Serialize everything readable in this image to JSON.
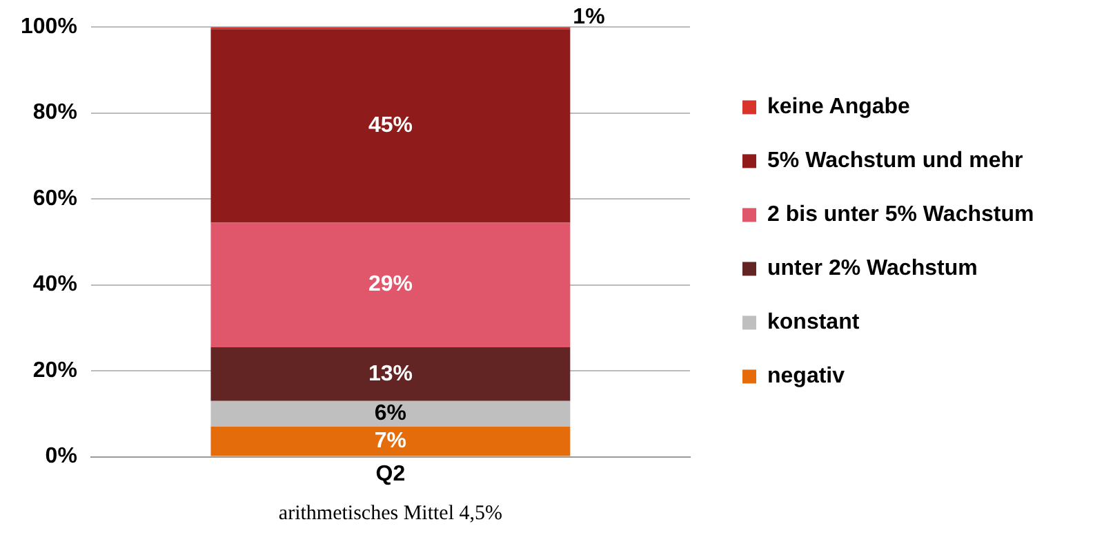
{
  "chart_data": {
    "type": "bar",
    "stacked": true,
    "categories": [
      "Q2"
    ],
    "series": [
      {
        "name": "negativ",
        "color": "#e46c0a",
        "values": [
          7
        ],
        "value_labels": [
          "7%"
        ]
      },
      {
        "name": "konstant",
        "color": "#bfbfbf",
        "values": [
          6
        ],
        "value_labels": [
          "6%"
        ]
      },
      {
        "name": "unter 2% Wachstum",
        "color": "#632523",
        "values": [
          12.5
        ],
        "value_labels": [
          "13%"
        ]
      },
      {
        "name": "2 bis unter 5% Wachstum",
        "color": "#e0566b",
        "values": [
          29
        ],
        "value_labels": [
          "29%"
        ]
      },
      {
        "name": "5% Wachstum und mehr",
        "color": "#8f1b1b",
        "values": [
          45
        ],
        "value_labels": [
          "45%"
        ]
      },
      {
        "name": "keine Angabe",
        "color": "#d9342b",
        "values": [
          0.5
        ],
        "value_labels": [
          "1%"
        ]
      }
    ],
    "ylim": [
      0,
      100
    ],
    "yticks": [
      {
        "value": 0,
        "label": "0%"
      },
      {
        "value": 20,
        "label": "20%"
      },
      {
        "value": 40,
        "label": "40%"
      },
      {
        "value": 60,
        "label": "60%"
      },
      {
        "value": 80,
        "label": "80%"
      },
      {
        "value": 100,
        "label": "100%"
      }
    ],
    "grid": "y",
    "legend": "right",
    "annotations": [
      "arithmetisches Mittel 4,5%"
    ]
  }
}
